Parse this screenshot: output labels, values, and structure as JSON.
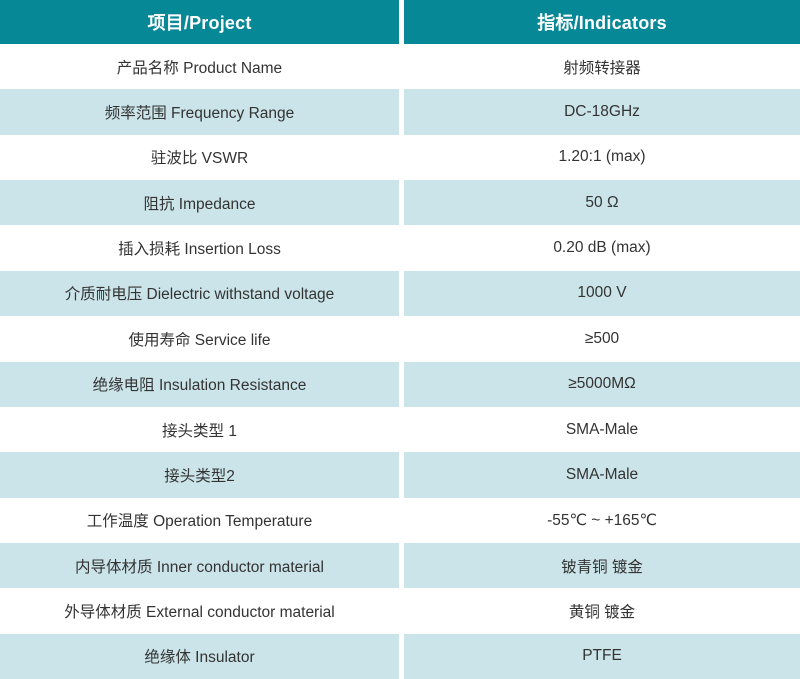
{
  "table": {
    "headers": [
      {
        "label": "项目/Project"
      },
      {
        "label": "指标/Indicators"
      }
    ],
    "rows": [
      {
        "project": "产品名称 Product Name",
        "indicator": "射频转接器"
      },
      {
        "project": "频率范围 Frequency Range",
        "indicator": "DC-18GHz"
      },
      {
        "project": "驻波比 VSWR",
        "indicator": "1.20:1 (max)"
      },
      {
        "project": "阻抗 Impedance",
        "indicator": "50 Ω"
      },
      {
        "project": "插入损耗 Insertion Loss",
        "indicator": "0.20 dB (max)"
      },
      {
        "project": "介质耐电压 Dielectric withstand voltage",
        "indicator": "1000 V"
      },
      {
        "project": "使用寿命 Service life",
        "indicator": "≥500"
      },
      {
        "project": "绝缘电阻 Insulation Resistance",
        "indicator": "≥5000MΩ"
      },
      {
        "project": "接头类型 1",
        "indicator": "SMA-Male"
      },
      {
        "project": "接头类型2",
        "indicator": "SMA-Male"
      },
      {
        "project": "工作温度 Operation Temperature",
        "indicator": "-55℃ ~ +165℃"
      },
      {
        "project": "内导体材质 Inner conductor material",
        "indicator": "铍青铜 镀金"
      },
      {
        "project": "外导体材质 External conductor material",
        "indicator": "黄铜 镀金"
      },
      {
        "project": "绝缘体 Insulator",
        "indicator": "PTFE"
      }
    ]
  },
  "colors": {
    "header_bg": "#078897",
    "header_text": "#ffffff",
    "row_bg": "#ffffff",
    "row_alt_bg": "#cbe4e9",
    "body_text": "#333333"
  }
}
